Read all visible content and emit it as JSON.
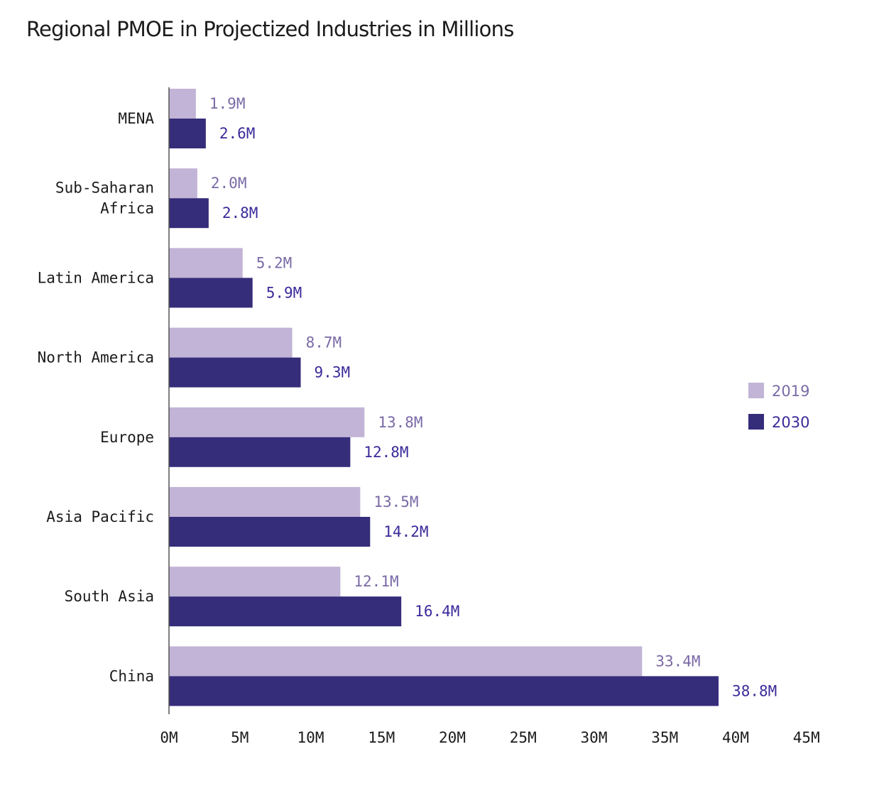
{
  "chart_data": {
    "type": "bar",
    "orientation": "horizontal",
    "title": "Regional PMOE in Projectized Industries in Millions",
    "xlabel": "",
    "ylabel": "",
    "xlim": [
      0,
      45
    ],
    "xticks": [
      0,
      5,
      10,
      15,
      20,
      25,
      30,
      35,
      40,
      45
    ],
    "xtick_labels": [
      "0M",
      "5M",
      "10M",
      "15M",
      "20M",
      "25M",
      "30M",
      "35M",
      "40M",
      "45M"
    ],
    "grid": false,
    "legend_position": "right",
    "categories": [
      [
        "MENA"
      ],
      [
        "Sub-Saharan",
        "Africa"
      ],
      [
        "Latin America"
      ],
      [
        "North America"
      ],
      [
        "Europe"
      ],
      [
        "Asia Pacific"
      ],
      [
        "South Asia"
      ],
      [
        "China"
      ]
    ],
    "series": [
      {
        "name": "2019",
        "color": "#c2b4d6",
        "label_color": "#7a6aa6",
        "values": [
          1.9,
          2.0,
          5.2,
          8.7,
          13.8,
          13.5,
          12.1,
          33.4
        ],
        "labels": [
          "1.9M",
          "2.0M",
          "5.2M",
          "8.7M",
          "13.8M",
          "13.5M",
          "12.1M",
          "33.4M"
        ]
      },
      {
        "name": "2030",
        "color": "#352c7a",
        "label_color": "#3a2a9a",
        "values": [
          2.6,
          2.8,
          5.9,
          9.3,
          12.8,
          14.2,
          16.4,
          38.8
        ],
        "labels": [
          "2.6M",
          "2.8M",
          "5.9M",
          "9.3M",
          "12.8M",
          "14.2M",
          "16.4M",
          "38.8M"
        ]
      }
    ]
  }
}
